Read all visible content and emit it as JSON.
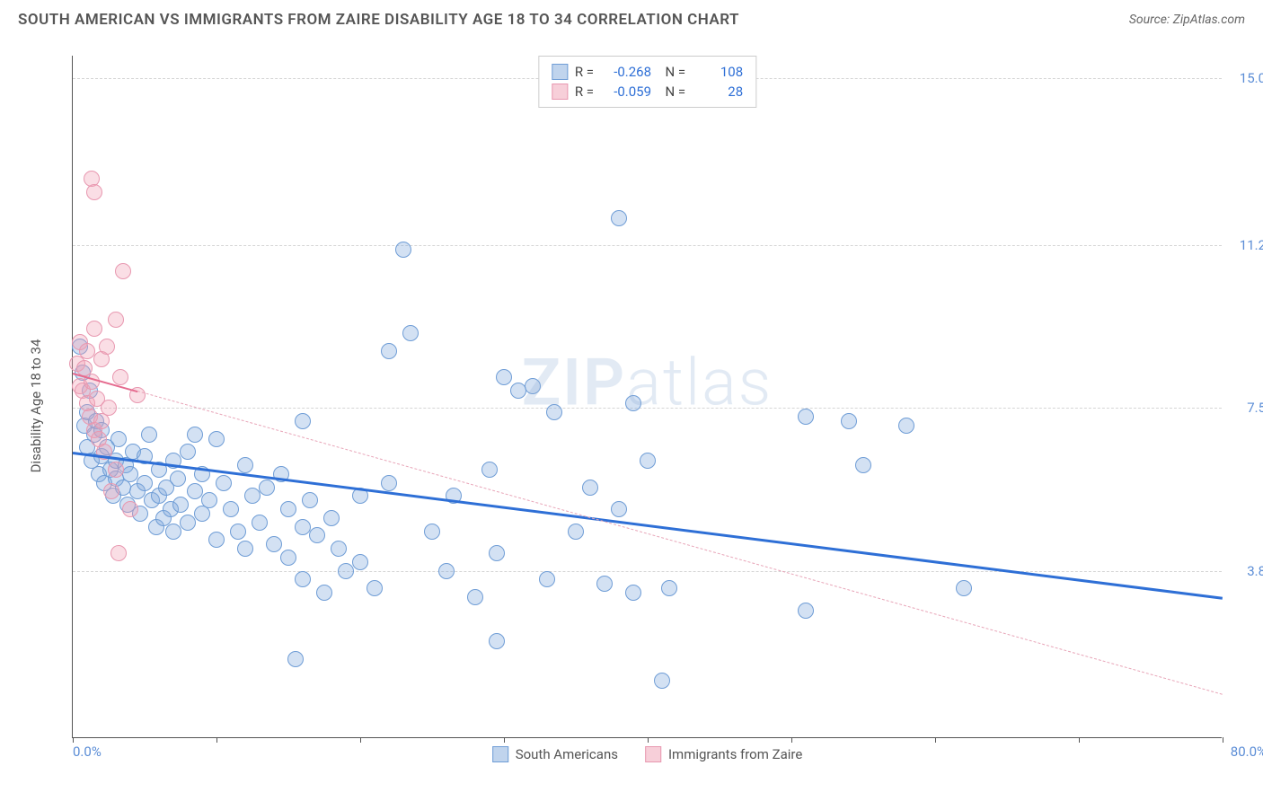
{
  "header": {
    "title": "SOUTH AMERICAN VS IMMIGRANTS FROM ZAIRE DISABILITY AGE 18 TO 34 CORRELATION CHART",
    "source": "Source: ZipAtlas.com"
  },
  "chart": {
    "type": "scatter",
    "ylabel": "Disability Age 18 to 34",
    "xlim": [
      0,
      80
    ],
    "ylim": [
      0,
      15.5
    ],
    "xtick_marks": [
      0,
      10,
      20,
      30,
      40,
      50,
      60,
      70,
      80
    ],
    "xtick_labels": {
      "left": "0.0%",
      "right": "80.0%"
    },
    "ytick_grid": [
      3.8,
      7.5,
      11.2,
      15.0
    ],
    "ytick_labels": [
      "3.8%",
      "7.5%",
      "11.2%",
      "15.0%"
    ],
    "background_color": "#ffffff",
    "grid_color": "#d5d5d5",
    "series": [
      {
        "name": "South Americans",
        "color_fill": "rgba(130,170,220,0.35)",
        "color_stroke": "#6f9dd6",
        "color_trend": "#2e6fd6",
        "marker_size": 18,
        "R": "-0.268",
        "N": "108",
        "trend": {
          "x1": 0,
          "y1": 6.5,
          "x2": 80,
          "y2": 3.2,
          "solid_until": 80
        },
        "points": [
          [
            0.5,
            8.9
          ],
          [
            0.7,
            8.3
          ],
          [
            0.8,
            7.1
          ],
          [
            1.0,
            6.6
          ],
          [
            1.0,
            7.4
          ],
          [
            1.2,
            7.9
          ],
          [
            1.3,
            6.3
          ],
          [
            1.5,
            6.9
          ],
          [
            1.6,
            7.2
          ],
          [
            1.8,
            6.0
          ],
          [
            2.0,
            6.4
          ],
          [
            2.0,
            7.0
          ],
          [
            2.2,
            5.8
          ],
          [
            2.4,
            6.6
          ],
          [
            2.6,
            6.1
          ],
          [
            2.8,
            5.5
          ],
          [
            3.0,
            6.3
          ],
          [
            3.0,
            5.9
          ],
          [
            3.2,
            6.8
          ],
          [
            3.5,
            5.7
          ],
          [
            3.7,
            6.2
          ],
          [
            3.8,
            5.3
          ],
          [
            4.0,
            6.0
          ],
          [
            4.2,
            6.5
          ],
          [
            4.5,
            5.6
          ],
          [
            4.7,
            5.1
          ],
          [
            5.0,
            6.4
          ],
          [
            5.0,
            5.8
          ],
          [
            5.3,
            6.9
          ],
          [
            5.5,
            5.4
          ],
          [
            5.8,
            4.8
          ],
          [
            6.0,
            6.1
          ],
          [
            6.0,
            5.5
          ],
          [
            6.3,
            5.0
          ],
          [
            6.5,
            5.7
          ],
          [
            6.8,
            5.2
          ],
          [
            7.0,
            6.3
          ],
          [
            7.0,
            4.7
          ],
          [
            7.3,
            5.9
          ],
          [
            7.5,
            5.3
          ],
          [
            8.0,
            6.5
          ],
          [
            8.0,
            4.9
          ],
          [
            8.5,
            5.6
          ],
          [
            9.0,
            5.1
          ],
          [
            9.0,
            6.0
          ],
          [
            9.5,
            5.4
          ],
          [
            10.0,
            6.8
          ],
          [
            10.0,
            4.5
          ],
          [
            10.5,
            5.8
          ],
          [
            11.0,
            5.2
          ],
          [
            11.5,
            4.7
          ],
          [
            12.0,
            6.2
          ],
          [
            12.0,
            4.3
          ],
          [
            12.5,
            5.5
          ],
          [
            13.0,
            4.9
          ],
          [
            13.5,
            5.7
          ],
          [
            14.0,
            4.4
          ],
          [
            14.5,
            6.0
          ],
          [
            15.0,
            5.2
          ],
          [
            15.0,
            4.1
          ],
          [
            16.0,
            4.8
          ],
          [
            16.0,
            3.6
          ],
          [
            16.5,
            5.4
          ],
          [
            17.0,
            4.6
          ],
          [
            17.5,
            3.3
          ],
          [
            18.0,
            5.0
          ],
          [
            18.5,
            4.3
          ],
          [
            19.0,
            3.8
          ],
          [
            20.0,
            5.5
          ],
          [
            20.0,
            4.0
          ],
          [
            21.0,
            3.4
          ],
          [
            22.0,
            5.8
          ],
          [
            22.0,
            8.8
          ],
          [
            23.0,
            11.1
          ],
          [
            23.5,
            9.2
          ],
          [
            25.0,
            4.7
          ],
          [
            26.0,
            3.8
          ],
          [
            26.5,
            5.5
          ],
          [
            28.0,
            3.2
          ],
          [
            29.0,
            6.1
          ],
          [
            29.5,
            4.2
          ],
          [
            29.5,
            2.2
          ],
          [
            30.0,
            8.2
          ],
          [
            31.0,
            7.9
          ],
          [
            32.0,
            8.0
          ],
          [
            33.0,
            3.6
          ],
          [
            33.5,
            7.4
          ],
          [
            35.0,
            4.7
          ],
          [
            36.0,
            5.7
          ],
          [
            37.0,
            3.5
          ],
          [
            38.0,
            5.2
          ],
          [
            38.0,
            11.8
          ],
          [
            39.0,
            7.6
          ],
          [
            39.0,
            3.3
          ],
          [
            40.0,
            6.3
          ],
          [
            41.0,
            1.3
          ],
          [
            41.5,
            3.4
          ],
          [
            15.5,
            1.8
          ],
          [
            51.0,
            2.9
          ],
          [
            51.0,
            7.3
          ],
          [
            54.0,
            7.2
          ],
          [
            55.0,
            6.2
          ],
          [
            58.0,
            7.1
          ],
          [
            62.0,
            3.4
          ],
          [
            16.0,
            7.2
          ],
          [
            8.5,
            6.9
          ]
        ]
      },
      {
        "name": "Immigrants from Zaire",
        "color_fill": "rgba(240,160,180,0.35)",
        "color_stroke": "#e898b0",
        "color_trend": "#e56b8f",
        "marker_size": 18,
        "R": "-0.059",
        "N": "28",
        "trend": {
          "x1": 0,
          "y1": 8.3,
          "x2": 80,
          "y2": 1.0,
          "solid_until": 4.5
        },
        "points": [
          [
            0.3,
            8.5
          ],
          [
            0.5,
            8.0
          ],
          [
            0.5,
            9.0
          ],
          [
            0.7,
            7.9
          ],
          [
            0.8,
            8.4
          ],
          [
            1.0,
            7.6
          ],
          [
            1.0,
            8.8
          ],
          [
            1.2,
            7.3
          ],
          [
            1.3,
            8.1
          ],
          [
            1.5,
            7.0
          ],
          [
            1.5,
            9.3
          ],
          [
            1.7,
            7.7
          ],
          [
            1.8,
            6.8
          ],
          [
            2.0,
            8.6
          ],
          [
            2.0,
            7.2
          ],
          [
            2.2,
            6.5
          ],
          [
            2.4,
            8.9
          ],
          [
            2.5,
            7.5
          ],
          [
            2.7,
            5.6
          ],
          [
            3.0,
            9.5
          ],
          [
            3.0,
            6.1
          ],
          [
            3.3,
            8.2
          ],
          [
            3.5,
            10.6
          ],
          [
            1.3,
            12.7
          ],
          [
            1.5,
            12.4
          ],
          [
            3.2,
            4.2
          ],
          [
            4.0,
            5.2
          ],
          [
            4.5,
            7.8
          ]
        ]
      }
    ],
    "legend_bottom": [
      {
        "label": "South Americans",
        "swatch": "blue"
      },
      {
        "label": "Immigrants from Zaire",
        "swatch": "pink"
      }
    ],
    "watermark": {
      "bold": "ZIP",
      "light": "atlas"
    }
  }
}
